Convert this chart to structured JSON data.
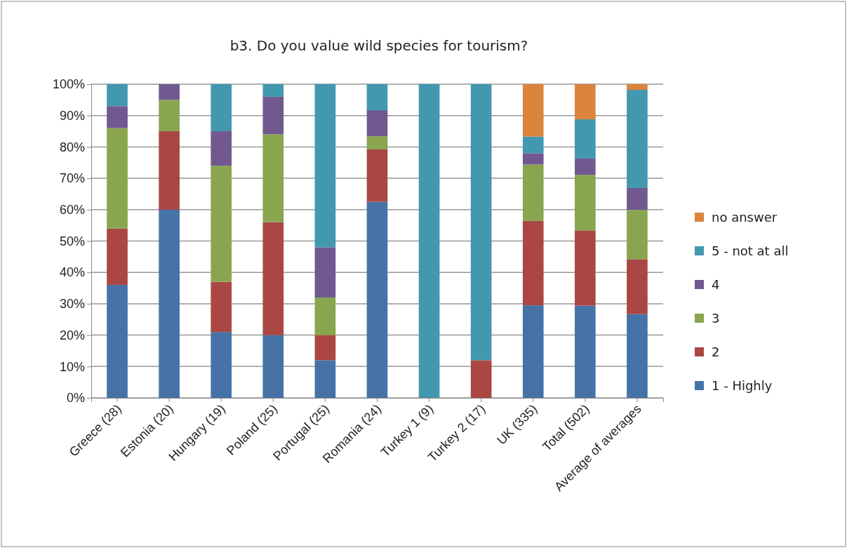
{
  "chart_data": {
    "type": "bar",
    "stacked": true,
    "title": "b3. Do you value wild species for tourism?",
    "categories": [
      "Greece (28)",
      "Estonia (20)",
      "Hungary (19)",
      "Poland (25)",
      "Portugal (25)",
      "Romania (24)",
      "Turkey 1 (9)",
      "Turkey 2 (17)",
      "UK (335)",
      "Total (502)",
      "Average of averages"
    ],
    "series": [
      {
        "name": "1 - Highly",
        "color": "#4572a7",
        "values": [
          36,
          60,
          21,
          20,
          12,
          62.5,
          0,
          0,
          29.5,
          29.4,
          26.7
        ]
      },
      {
        "name": "2",
        "color": "#aa4643",
        "values": [
          18,
          25,
          16,
          36,
          8,
          16.7,
          0,
          12,
          26.9,
          24,
          17.5
        ]
      },
      {
        "name": "3",
        "color": "#89a54e",
        "values": [
          32,
          10,
          37,
          28,
          12,
          4.2,
          0,
          0,
          18,
          17.7,
          15.7
        ]
      },
      {
        "name": "4",
        "color": "#71588f",
        "values": [
          7,
          5,
          11,
          12,
          16,
          8.3,
          0,
          0,
          3.6,
          5.2,
          7
        ]
      },
      {
        "name": "5 - not at all",
        "color": "#4198af",
        "values": [
          7,
          0,
          15,
          4,
          52,
          8.3,
          100,
          88,
          5.3,
          12.5,
          31.3
        ]
      },
      {
        "name": "no answer",
        "color": "#db843d",
        "values": [
          0,
          0,
          0,
          0,
          0,
          0,
          0,
          0,
          16.7,
          11.2,
          1.8
        ]
      }
    ],
    "ylim": [
      0,
      100
    ],
    "yticks": [
      {
        "value": 0,
        "label": "0%"
      },
      {
        "value": 10,
        "label": "10%"
      },
      {
        "value": 20,
        "label": "20%"
      },
      {
        "value": 30,
        "label": "30%"
      },
      {
        "value": 40,
        "label": "40%"
      },
      {
        "value": 50,
        "label": "50%"
      },
      {
        "value": 60,
        "label": "60%"
      },
      {
        "value": 70,
        "label": "70%"
      },
      {
        "value": 80,
        "label": "80%"
      },
      {
        "value": 90,
        "label": "90%"
      },
      {
        "value": 100,
        "label": "100%"
      }
    ],
    "grid": "y",
    "legend": "right"
  }
}
